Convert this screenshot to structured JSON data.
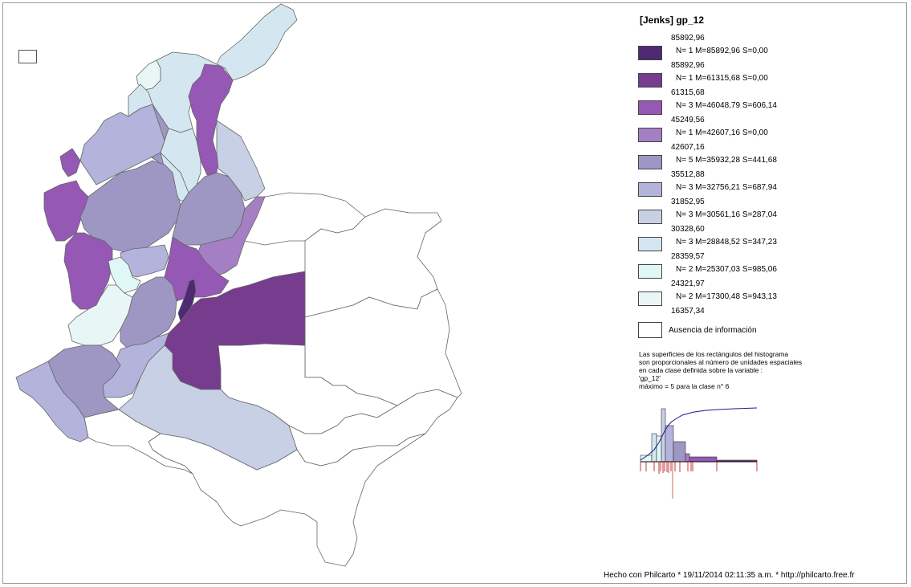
{
  "legend": {
    "title": "[Jenks] gp_12",
    "classes": [
      {
        "upper": "85892,96",
        "stats": "N= 1  M=85892,96  S=0,00",
        "color": "#4e2a72"
      },
      {
        "upper": "85892,96",
        "stats": "N= 1  M=61315,68  S=0,00",
        "color": "#763c8e"
      },
      {
        "upper": "61315,68",
        "stats": "N= 3  M=46048,79  S=606,14",
        "color": "#9558b4"
      },
      {
        "upper": "45249,56",
        "stats": "N= 1  M=42607,16  S=0,00",
        "color": "#a47fc3"
      },
      {
        "upper": "42607,16",
        "stats": "N= 5  M=35932,28  S=441,68",
        "color": "#9e97c4"
      },
      {
        "upper": "35512,88",
        "stats": "N= 3  M=32756,21  S=687,94",
        "color": "#b3b3dc"
      },
      {
        "upper": "31852,95",
        "stats": "N= 3  M=30561,16  S=287,04",
        "color": "#c8d0e6"
      },
      {
        "upper": "30328,60",
        "stats": "N= 3  M=28848,52  S=347,23",
        "color": "#d4e6ef"
      },
      {
        "upper": "28359,57",
        "stats": "N= 2  M=25307,03  S=985,06",
        "color": "#e0f7f7"
      },
      {
        "upper": "24321,97",
        "stats": "N= 2  M=17300,48  S=943,13",
        "color": "#e8f6f6"
      }
    ],
    "last_bound": "16357,34",
    "no_data_label": "Ausencia de información"
  },
  "note_lines": [
    "Las superficies de los rectángulos del histograma",
    "son proporcionales al número de unidades espaciales",
    "en cada clase definida sobre la variable :",
    "'gp_12'",
    "máximo = 5 para la clase n° 6"
  ],
  "footer": "Hecho con Philcarto * 19/11/2014 02:11:35 a.m. * http://philcarto.free.fr"
}
